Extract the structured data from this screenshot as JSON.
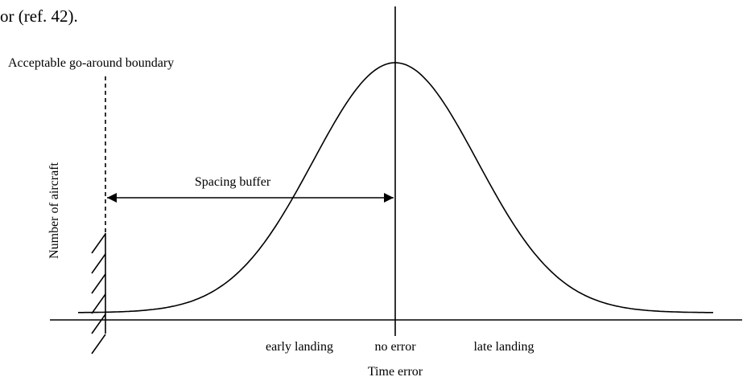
{
  "header": {
    "text": "or (ref. 42)."
  },
  "labels": {
    "boundary": "Acceptable go-around boundary",
    "y_axis": "Number of aircraft",
    "buffer": "Spacing buffer",
    "early": "early landing",
    "none": "no error",
    "late": "late landing",
    "x_axis": "Time error"
  }
}
